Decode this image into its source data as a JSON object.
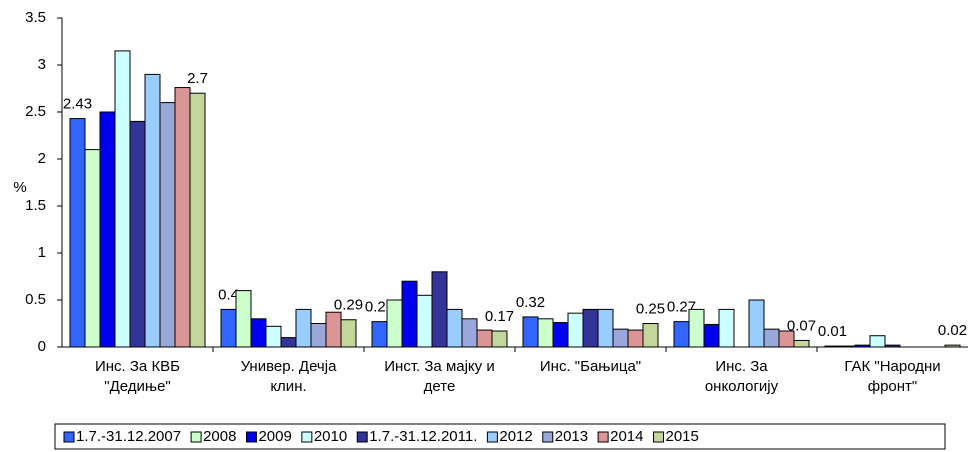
{
  "chart_data": {
    "type": "bar",
    "y_label": "%",
    "categories": [
      [
        "Инс. За КВБ",
        "\"Дедиње\""
      ],
      [
        "Универ. Дечја",
        "клин."
      ],
      [
        "Инст. За мајку и",
        "дете"
      ],
      [
        "Инс. \"Бањица\""
      ],
      [
        "Инс. За",
        "онкологију"
      ],
      [
        "ГАК \"Народни",
        "фронт\""
      ]
    ],
    "series": [
      {
        "name": "1.7.-31.12.2007",
        "color": "#3366ff",
        "labels": true,
        "values": [
          2.43,
          0.4,
          0.27,
          0.32,
          0.27,
          0.01
        ]
      },
      {
        "name": "2008",
        "color": "#ccffcc",
        "values": [
          2.1,
          0.6,
          0.5,
          0.3,
          0.4,
          0.01
        ]
      },
      {
        "name": "2009",
        "color": "#0000ee",
        "values": [
          2.5,
          0.3,
          0.7,
          0.26,
          0.24,
          0.02
        ]
      },
      {
        "name": "2010",
        "color": "#ccffff",
        "values": [
          3.15,
          0.22,
          0.55,
          0.36,
          0.4,
          0.12
        ]
      },
      {
        "name": "1.7.-31.12.2011.",
        "color": "#333399",
        "values": [
          2.4,
          0.1,
          0.8,
          0.4,
          0,
          0.02
        ]
      },
      {
        "name": "2012",
        "color": "#99ccff",
        "values": [
          2.9,
          0.4,
          0.4,
          0.4,
          0.5,
          0
        ]
      },
      {
        "name": "2013",
        "color": "#99a8d8",
        "values": [
          2.6,
          0.25,
          0.3,
          0.19,
          0.19,
          0
        ]
      },
      {
        "name": "2014",
        "color": "#d99694",
        "values": [
          2.76,
          0.37,
          0.18,
          0.18,
          0.17,
          0
        ]
      },
      {
        "name": "2015",
        "color": "#c3d69b",
        "labels": true,
        "values": [
          2.7,
          0.29,
          0.17,
          0.25,
          0.07,
          0.02
        ]
      }
    ],
    "ylim": [
      0,
      3.5
    ],
    "yticks": [
      0,
      0.5,
      1,
      1.5,
      2,
      2.5,
      3,
      3.5
    ],
    "legend": "bottom"
  }
}
